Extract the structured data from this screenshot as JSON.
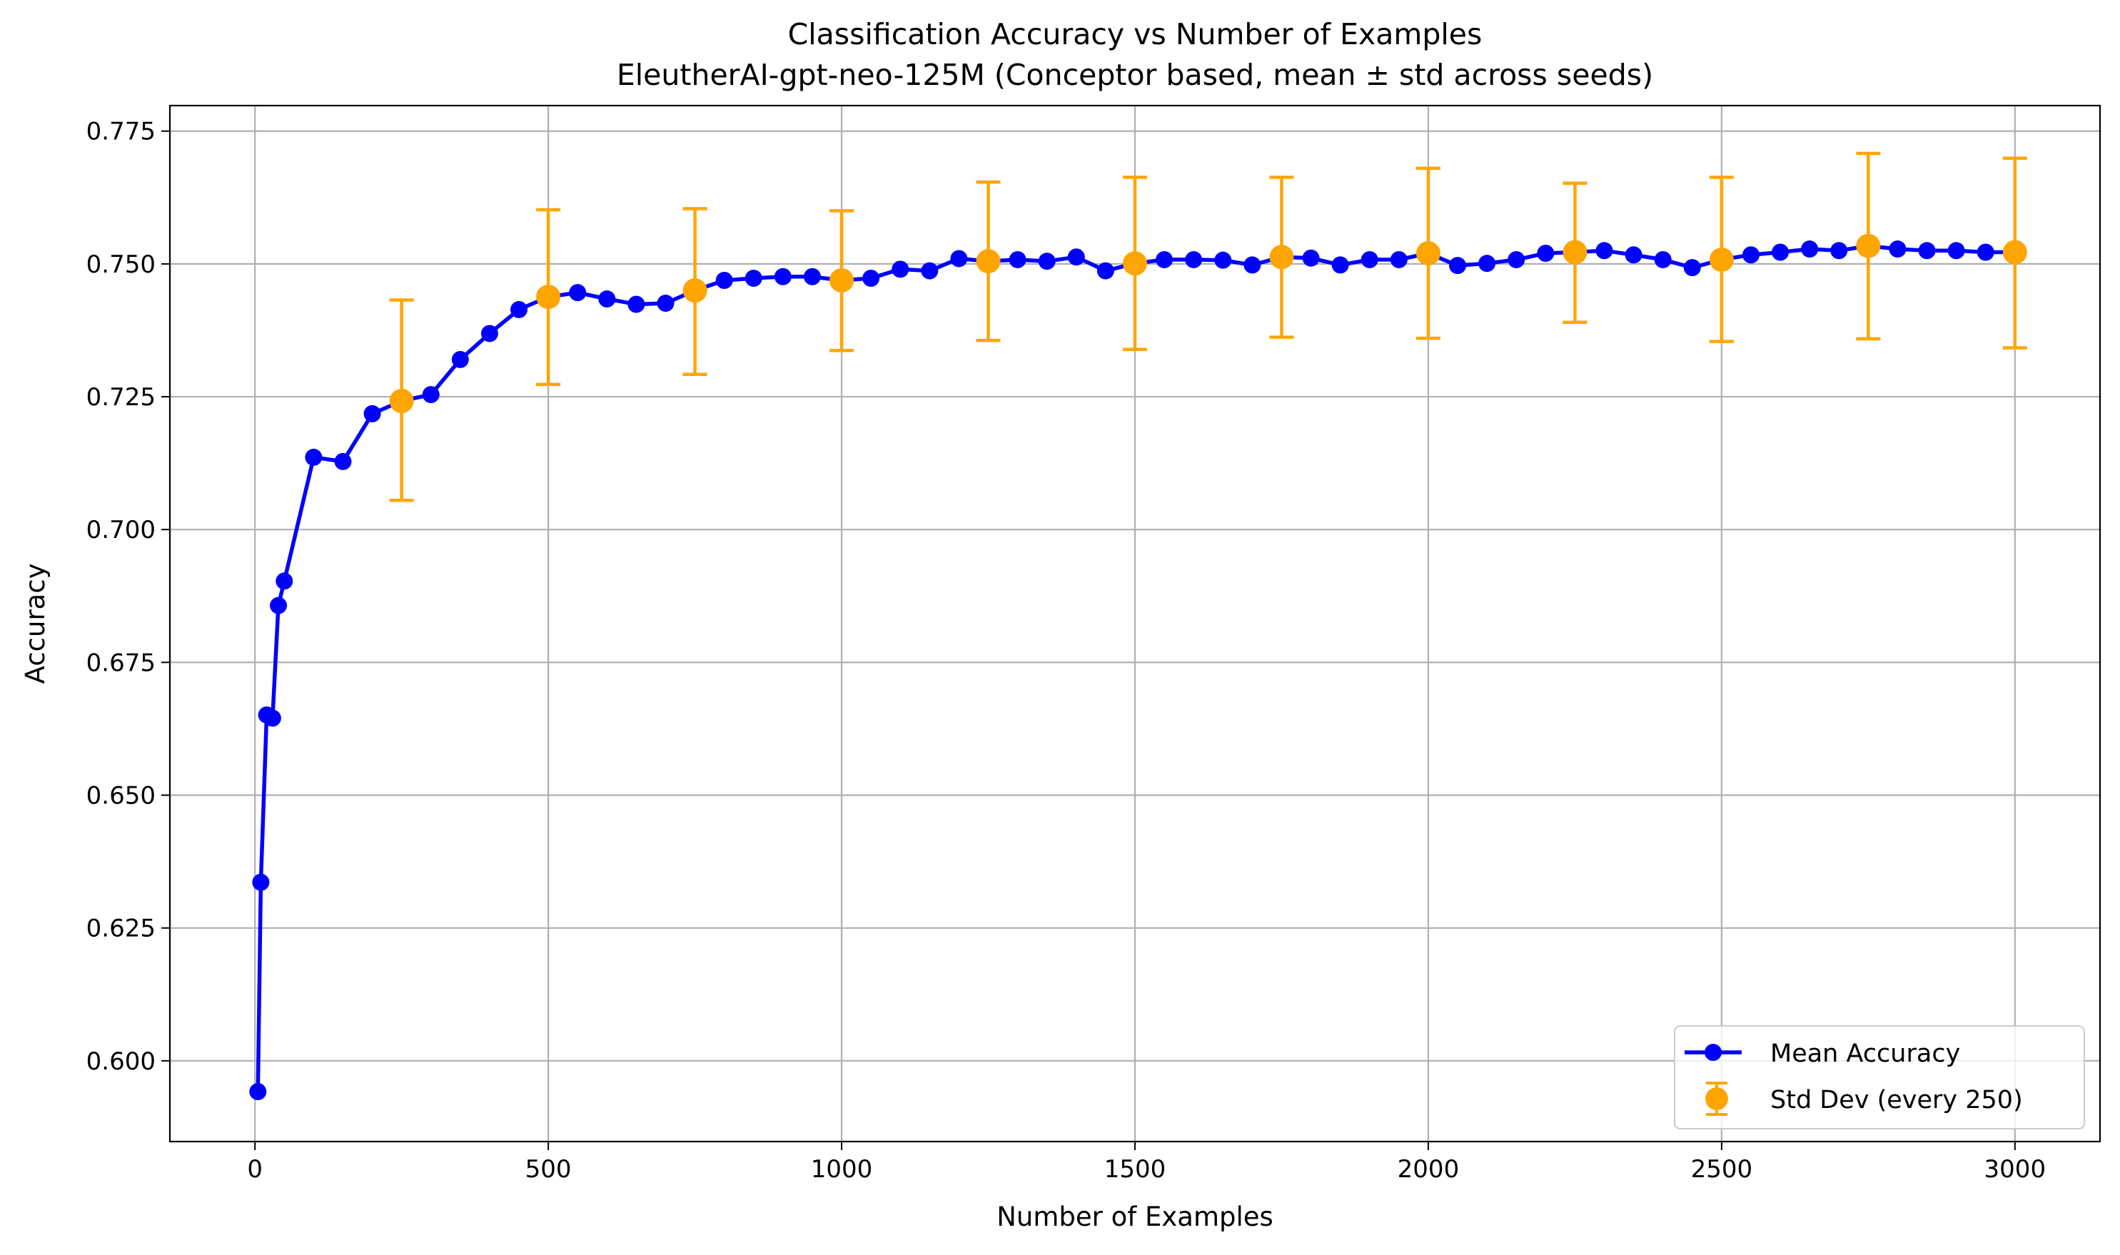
{
  "chart_data": {
    "type": "line",
    "title": "Classification Accuracy vs Number of Examples",
    "subtitle": "EleutherAI-gpt-neo-125M (Conceptor based, mean ± std across seeds)",
    "xlabel": "Number of Examples",
    "ylabel": "Accuracy",
    "xlim": [
      -145,
      3145
    ],
    "ylim": [
      0.5848,
      0.7798
    ],
    "xticks": [
      0,
      500,
      1000,
      1500,
      2000,
      2500,
      3000
    ],
    "xtick_labels": [
      "0",
      "500",
      "1000",
      "1500",
      "2000",
      "2500",
      "3000"
    ],
    "yticks": [
      0.6,
      0.625,
      0.65,
      0.675,
      0.7,
      0.725,
      0.75,
      0.775
    ],
    "ytick_labels": [
      "0.600",
      "0.625",
      "0.650",
      "0.675",
      "0.700",
      "0.725",
      "0.750",
      "0.775"
    ],
    "grid": true,
    "legend_position": "bottom-right",
    "series": [
      {
        "name": "Mean Accuracy",
        "color": "#0000ff",
        "marker": "circle",
        "x": [
          5,
          10,
          20,
          30,
          40,
          50,
          100,
          150,
          200,
          250,
          300,
          350,
          400,
          450,
          500,
          550,
          600,
          650,
          700,
          750,
          800,
          850,
          900,
          950,
          1000,
          1050,
          1100,
          1150,
          1200,
          1250,
          1300,
          1350,
          1400,
          1450,
          1500,
          1550,
          1600,
          1650,
          1700,
          1750,
          1800,
          1850,
          1900,
          1950,
          2000,
          2050,
          2100,
          2150,
          2200,
          2250,
          2300,
          2350,
          2400,
          2450,
          2500,
          2550,
          2600,
          2650,
          2700,
          2750,
          2800,
          2850,
          2900,
          2950,
          3000
        ],
        "y": [
          0.5942,
          0.6336,
          0.6651,
          0.6645,
          0.6857,
          0.6903,
          0.7136,
          0.7128,
          0.7218,
          0.7242,
          0.7254,
          0.732,
          0.7369,
          0.7414,
          0.7438,
          0.7446,
          0.7434,
          0.7424,
          0.7426,
          0.745,
          0.7469,
          0.7473,
          0.7476,
          0.7476,
          0.7469,
          0.7473,
          0.749,
          0.7487,
          0.751,
          0.7505,
          0.7508,
          0.7505,
          0.7513,
          0.7487,
          0.7501,
          0.7508,
          0.7508,
          0.7507,
          0.7498,
          0.7513,
          0.7511,
          0.7498,
          0.7508,
          0.7508,
          0.752,
          0.7497,
          0.7501,
          0.7508,
          0.752,
          0.7522,
          0.7525,
          0.7517,
          0.7508,
          0.7493,
          0.7508,
          0.7517,
          0.7522,
          0.7528,
          0.7525,
          0.7534,
          0.7528,
          0.7525,
          0.7525,
          0.7522,
          0.7522
        ]
      },
      {
        "name": "Std Dev (every 250)",
        "color": "#ffa500",
        "marker": "circle",
        "errorbar": true,
        "x": [
          250,
          500,
          750,
          1000,
          1250,
          1500,
          1750,
          2000,
          2250,
          2500,
          2750,
          3000
        ],
        "y": [
          0.7242,
          0.7438,
          0.745,
          0.7469,
          0.7505,
          0.7501,
          0.7513,
          0.752,
          0.7522,
          0.7508,
          0.7534,
          0.7522
        ],
        "lower": [
          0.7055,
          0.7273,
          0.7292,
          0.7337,
          0.7356,
          0.7339,
          0.7362,
          0.736,
          0.739,
          0.7354,
          0.7359,
          0.7342
        ],
        "upper": [
          0.7432,
          0.7602,
          0.7604,
          0.76,
          0.7654,
          0.7663,
          0.7663,
          0.768,
          0.7652,
          0.7663,
          0.7708,
          0.7699
        ]
      }
    ]
  }
}
